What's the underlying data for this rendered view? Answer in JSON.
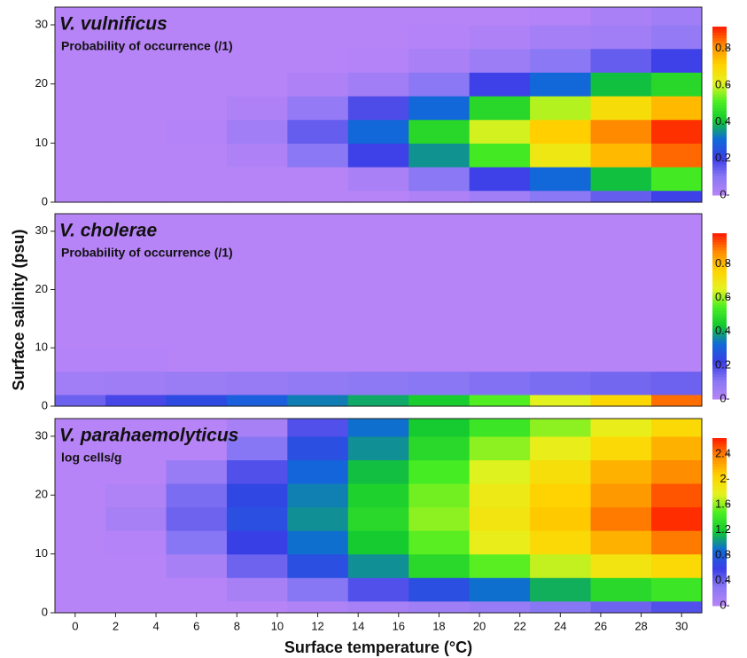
{
  "chart_data": [
    {
      "type": "contour",
      "title": "V. vulnificus",
      "subtitle": "Probability of occurrence (/1)",
      "x": [
        0,
        3,
        6,
        9,
        12,
        15,
        18,
        21,
        24,
        27,
        30
      ],
      "y": [
        0,
        4,
        8,
        12,
        16,
        20,
        24,
        28,
        32
      ],
      "z": [
        [
          0,
          0,
          0,
          0,
          0,
          0,
          0.02,
          0.05,
          0.1,
          0.15,
          0.2
        ],
        [
          0,
          0,
          0,
          0,
          0,
          0.03,
          0.1,
          0.2,
          0.3,
          0.4,
          0.5
        ],
        [
          0,
          0,
          0,
          0.02,
          0.1,
          0.2,
          0.35,
          0.5,
          0.65,
          0.75,
          0.85
        ],
        [
          0,
          0,
          0.01,
          0.05,
          0.15,
          0.3,
          0.45,
          0.6,
          0.72,
          0.82,
          0.9
        ],
        [
          0,
          0,
          0,
          0.02,
          0.08,
          0.18,
          0.3,
          0.45,
          0.58,
          0.68,
          0.75
        ],
        [
          0,
          0,
          0,
          0,
          0.02,
          0.05,
          0.1,
          0.2,
          0.3,
          0.4,
          0.45
        ],
        [
          0,
          0,
          0,
          0,
          0,
          0.01,
          0.03,
          0.06,
          0.1,
          0.15,
          0.2
        ],
        [
          0,
          0,
          0,
          0,
          0,
          0,
          0.01,
          0.02,
          0.04,
          0.05,
          0.08
        ],
        [
          0,
          0,
          0,
          0,
          0,
          0,
          0,
          0,
          0.01,
          0.03,
          0.05
        ]
      ],
      "xlim": [
        -1,
        31
      ],
      "ylim": [
        0,
        33
      ],
      "yticks": [
        0,
        10,
        20,
        30
      ],
      "zlim": [
        0,
        0.92
      ],
      "zticks": [
        0,
        0.2,
        0.4,
        0.6,
        0.8
      ],
      "colormap": [
        "#b784f7",
        "#8a78f4",
        "#3a3ee6",
        "#0f6ad8",
        "#12c830",
        "#49ee22",
        "#e6f21e",
        "#ffd200",
        "#ff8c00",
        "#ff1a00"
      ]
    },
    {
      "type": "contour",
      "title": "V. cholerae",
      "subtitle": "Probability of occurrence (/1)",
      "ylabel": "Surface salinity (psu)",
      "x": [
        0,
        3,
        6,
        9,
        12,
        15,
        18,
        21,
        24,
        27,
        30
      ],
      "y": [
        0,
        4,
        8,
        12,
        16,
        20,
        24,
        28,
        32
      ],
      "z": [
        [
          0.15,
          0.2,
          0.25,
          0.3,
          0.35,
          0.4,
          0.45,
          0.55,
          0.65,
          0.75,
          0.9
        ],
        [
          0.05,
          0.06,
          0.07,
          0.08,
          0.09,
          0.1,
          0.11,
          0.12,
          0.13,
          0.14,
          0.15
        ],
        [
          0.01,
          0.01,
          0,
          0,
          0,
          0,
          0,
          0,
          0,
          0,
          0
        ],
        [
          0,
          0,
          0,
          0,
          0,
          0,
          0,
          0,
          0,
          0,
          0
        ],
        [
          0,
          0,
          0,
          0,
          0,
          0,
          0,
          0,
          0,
          0,
          0
        ],
        [
          0,
          0,
          0,
          0,
          0,
          0,
          0,
          0,
          0,
          0,
          0
        ],
        [
          0,
          0,
          0,
          0,
          0,
          0,
          0,
          0,
          0,
          0,
          0
        ],
        [
          0,
          0,
          0,
          0,
          0,
          0,
          0,
          0,
          0,
          0,
          0
        ],
        [
          0,
          0,
          0,
          0,
          0,
          0,
          0,
          0,
          0,
          0,
          0
        ]
      ],
      "xlim": [
        -1,
        31
      ],
      "ylim": [
        0,
        33
      ],
      "yticks": [
        0,
        10,
        20,
        30
      ],
      "zlim": [
        0,
        0.98
      ],
      "zticks": [
        0,
        0.2,
        0.4,
        0.6,
        0.8
      ],
      "colormap": [
        "#b784f7",
        "#8a78f4",
        "#3a3ee6",
        "#0f6ad8",
        "#12c830",
        "#49ee22",
        "#e6f21e",
        "#ffd200",
        "#ff8c00",
        "#ff1a00"
      ]
    },
    {
      "type": "contour",
      "title": "V. parahaemolyticus",
      "subtitle": "log cells/g",
      "xlabel": "Surface temperature (°C)",
      "x": [
        0,
        3,
        6,
        9,
        12,
        15,
        18,
        21,
        24,
        27,
        30
      ],
      "y": [
        0,
        4,
        8,
        12,
        16,
        20,
        24,
        28,
        32
      ],
      "z": [
        [
          0,
          0,
          0,
          0,
          0.05,
          0.1,
          0.15,
          0.2,
          0.3,
          0.4,
          0.5
        ],
        [
          0,
          0,
          0,
          0.1,
          0.3,
          0.5,
          0.7,
          0.9,
          1.1,
          1.3,
          1.4
        ],
        [
          0,
          0,
          0.1,
          0.4,
          0.7,
          1.0,
          1.3,
          1.5,
          1.7,
          1.9,
          2.0
        ],
        [
          0,
          0.02,
          0.3,
          0.6,
          0.9,
          1.2,
          1.5,
          1.8,
          2.0,
          2.2,
          2.4
        ],
        [
          0,
          0.1,
          0.4,
          0.7,
          1.0,
          1.3,
          1.6,
          1.9,
          2.1,
          2.4,
          2.6
        ],
        [
          0,
          0.05,
          0.35,
          0.65,
          0.95,
          1.25,
          1.55,
          1.85,
          2.05,
          2.3,
          2.5
        ],
        [
          0,
          0,
          0.2,
          0.5,
          0.85,
          1.15,
          1.45,
          1.75,
          1.95,
          2.2,
          2.35
        ],
        [
          0,
          0,
          0,
          0.3,
          0.7,
          1.0,
          1.3,
          1.6,
          1.8,
          2.0,
          2.2
        ],
        [
          0,
          0,
          0,
          0.1,
          0.5,
          0.9,
          1.2,
          1.4,
          1.6,
          1.8,
          2.0
        ]
      ],
      "xlim": [
        -1,
        31
      ],
      "ylim": [
        0,
        33
      ],
      "xticks": [
        0,
        2,
        4,
        6,
        8,
        10,
        12,
        14,
        16,
        18,
        20,
        22,
        24,
        26,
        28,
        30
      ],
      "yticks": [
        0,
        10,
        20,
        30
      ],
      "zlim": [
        0,
        2.65
      ],
      "zticks": [
        0,
        0.4,
        0.8,
        1.2,
        1.6,
        2,
        2.4
      ],
      "colormap": [
        "#b784f7",
        "#8a78f4",
        "#3a3ee6",
        "#0f6ad8",
        "#12c830",
        "#49ee22",
        "#e6f21e",
        "#ffd200",
        "#ff8c00",
        "#ff1a00"
      ]
    }
  ]
}
